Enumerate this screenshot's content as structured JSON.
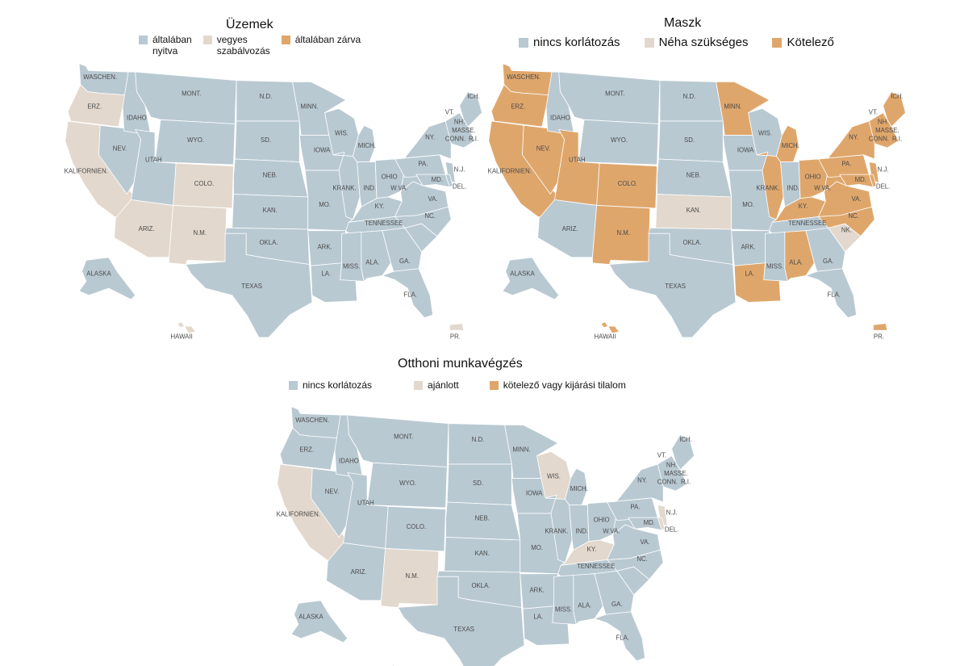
{
  "colors": {
    "blue": "#b9c9d2",
    "beige": "#e3d8cd",
    "orange": "#dfa66b"
  },
  "panels": [
    {
      "id": "uzemek",
      "title": "Üzemek",
      "legend": [
        {
          "key": "blue",
          "label": "általában\nnyitva"
        },
        {
          "key": "beige",
          "label": "vegyes\nszabálvozás"
        },
        {
          "key": "orange",
          "label": "általában zárva"
        }
      ],
      "states": {
        "WA": "blue",
        "OR": "beige",
        "CA": "beige",
        "NV": "blue",
        "ID": "blue",
        "MT": "blue",
        "WY": "blue",
        "UT": "blue",
        "AZ": "beige",
        "CO": "beige",
        "NM": "beige",
        "ND": "blue",
        "SD": "blue",
        "NE": "blue",
        "KS": "blue",
        "OK": "blue",
        "TX": "blue",
        "MN": "blue",
        "IA": "blue",
        "MO": "blue",
        "AR": "blue",
        "LA": "blue",
        "WI": "blue",
        "MI": "blue",
        "IL": "blue",
        "IN": "blue",
        "OH": "blue",
        "KY": "blue",
        "TN": "blue",
        "MS": "blue",
        "AL": "blue",
        "GA": "blue",
        "FL": "blue",
        "SC": "blue",
        "NC": "blue",
        "VA": "blue",
        "WV": "blue",
        "PA": "blue",
        "NY": "blue",
        "ME": "blue",
        "NE_N": "blue",
        "MD": "blue",
        "NJ": "blue",
        "DE": "blue",
        "AK": "blue",
        "HI": "beige",
        "PR": "beige"
      }
    },
    {
      "id": "maszk",
      "title": "Maszk",
      "legend": [
        {
          "key": "blue",
          "label": "nincs korlátozás"
        },
        {
          "key": "beige",
          "label": "Néha szükséges"
        },
        {
          "key": "orange",
          "label": "Kötelező"
        }
      ],
      "states": {
        "WA": "orange",
        "OR": "orange",
        "CA": "orange",
        "NV": "orange",
        "ID": "blue",
        "MT": "blue",
        "WY": "blue",
        "UT": "orange",
        "AZ": "blue",
        "CO": "orange",
        "NM": "orange",
        "ND": "blue",
        "SD": "blue",
        "NE": "blue",
        "KS": "beige",
        "OK": "blue",
        "TX": "blue",
        "MN": "orange",
        "IA": "blue",
        "MO": "blue",
        "AR": "blue",
        "LA": "orange",
        "WI": "blue",
        "MI": "orange",
        "IL": "orange",
        "IN": "blue",
        "OH": "orange",
        "KY": "orange",
        "TN": "blue",
        "MS": "blue",
        "AL": "orange",
        "GA": "blue",
        "FL": "blue",
        "SC": "beige",
        "NC": "orange",
        "VA": "orange",
        "WV": "orange",
        "PA": "orange",
        "NY": "orange",
        "ME": "orange",
        "NE_N": "orange",
        "MD": "orange",
        "NJ": "orange",
        "DE": "orange",
        "AK": "blue",
        "HI": "orange",
        "PR": "orange"
      }
    },
    {
      "id": "otthoni",
      "title": "Otthoni munkavégzés",
      "legend": [
        {
          "key": "blue",
          "label": "nincs korlátozás"
        },
        {
          "key": "beige",
          "label": "ajánlott"
        },
        {
          "key": "orange",
          "label": "kötelező vagy kijárási tilalom"
        }
      ],
      "states": {
        "WA": "blue",
        "OR": "blue",
        "CA": "beige",
        "NV": "blue",
        "ID": "blue",
        "MT": "blue",
        "WY": "blue",
        "UT": "blue",
        "AZ": "blue",
        "CO": "blue",
        "NM": "beige",
        "ND": "blue",
        "SD": "blue",
        "NE": "blue",
        "KS": "blue",
        "OK": "blue",
        "TX": "blue",
        "MN": "blue",
        "IA": "blue",
        "MO": "blue",
        "AR": "blue",
        "LA": "blue",
        "WI": "beige",
        "MI": "blue",
        "IL": "blue",
        "IN": "blue",
        "OH": "blue",
        "KY": "beige",
        "TN": "blue",
        "MS": "blue",
        "AL": "blue",
        "GA": "blue",
        "FL": "blue",
        "SC": "blue",
        "NC": "blue",
        "VA": "blue",
        "WV": "blue",
        "PA": "blue",
        "NY": "blue",
        "ME": "blue",
        "NE_N": "blue",
        "MD": "blue",
        "NJ": "beige",
        "DE": "beige",
        "AK": "blue",
        "HI": "blue",
        "PR": "orange"
      }
    }
  ],
  "state_labels": {
    "WA": "WASCHEN.",
    "OR": "ERZ.",
    "CA": "KALIFORNIEN.",
    "NV": "NEV.",
    "ID": "IDAHO",
    "MT": "MONT.",
    "WY": "WYO.",
    "UT": "UTAH",
    "AZ": "ARIZ.",
    "CO": "COLO.",
    "NM": "N.M.",
    "ND": "N.D.",
    "SD": "SD.",
    "NE": "NEB.",
    "KS": "KAN.",
    "OK": "OKLA.",
    "TX": "TEXAS",
    "MN": "MINN.",
    "IA": "IOWA",
    "MO": "MO.",
    "AR": "ARK.",
    "LA": "LA.",
    "WI": "WIS.",
    "MI": "MICH.",
    "IL": "KRANK.",
    "IN": "IND.",
    "OH": "OHIO",
    "KY": "KY.",
    "TN": "TENNESSEE",
    "MS": "MISS.",
    "AL": "ALA.",
    "GA": "GA.",
    "FL": "FLA.",
    "SC": "",
    "NC": "NC.",
    "VA": "VA.",
    "WV": "W.VA.",
    "PA": "PA.",
    "NY": "NY.",
    "ME": "ICH.",
    "NE_N": "",
    "MD": "MD.",
    "NJ": "N.J.",
    "DE": "DEL.",
    "AK": "ALASKA",
    "HI": "HAWAII",
    "PR": "PR.",
    "SC_ALT": "NK.",
    "VT": "VT.",
    "NH": "NH.",
    "MA": "MASSE.",
    "CT": "CONN.",
    "RI": "R.I."
  }
}
